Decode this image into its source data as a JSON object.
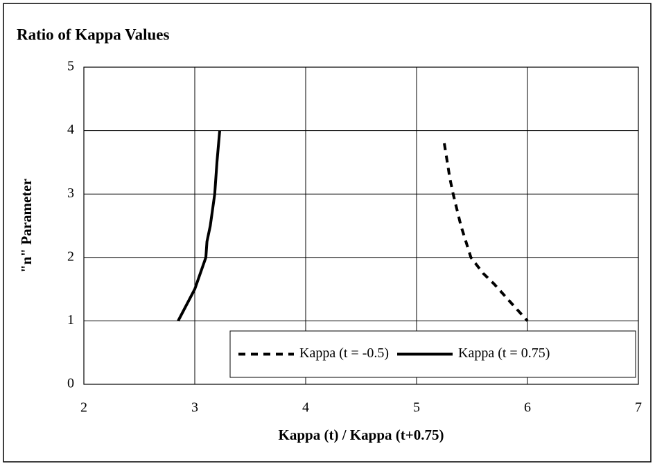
{
  "chart_data": {
    "type": "line",
    "title": "Ratio of Kappa Values",
    "x_label": "Kappa (t) / Kappa (t+0.75)",
    "y_label": "\"n\" Parameter",
    "xlim": [
      2,
      7
    ],
    "xticks": [
      2,
      3,
      4,
      5,
      6,
      7
    ],
    "ylim": [
      0,
      5
    ],
    "yticks": [
      0,
      1,
      2,
      3,
      4,
      5
    ],
    "grid": true,
    "legend": "lower right",
    "series": [
      {
        "name": "Kappa (t = -0.5)",
        "color": "#000000",
        "dash": "dashed",
        "x": [
          5.25,
          5.3,
          5.33,
          5.4,
          5.49,
          5.6,
          5.7,
          5.87,
          6.0
        ],
        "values": [
          3.8,
          3.25,
          3.0,
          2.5,
          2.0,
          1.75,
          1.58,
          1.25,
          1.0
        ]
      },
      {
        "name": "Kappa (t = 0.75)",
        "color": "#000000",
        "dash": "solid",
        "x": [
          2.85,
          3.0,
          3.1,
          3.11,
          3.14,
          3.18,
          3.2,
          3.225
        ],
        "values": [
          1.0,
          1.5,
          2.0,
          2.25,
          2.5,
          3.0,
          3.5,
          4.0
        ]
      }
    ]
  }
}
